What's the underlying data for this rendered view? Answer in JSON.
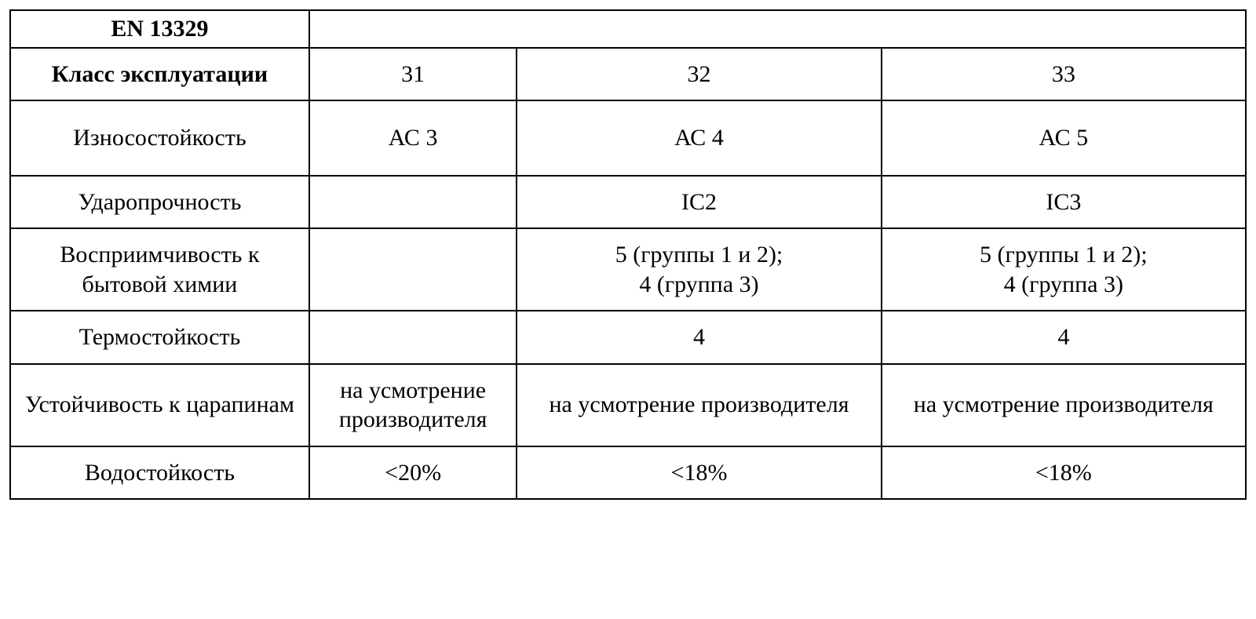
{
  "table": {
    "type": "table",
    "border_color": "#000000",
    "border_width": 2,
    "background_color": "#ffffff",
    "text_color": "#000000",
    "font_family": "Times New Roman",
    "base_fontsize": 30,
    "column_widths_pct": [
      24.2,
      16.8,
      29.5,
      29.5
    ],
    "header": {
      "standard_label": "EN 13329",
      "standard_label_bold": true
    },
    "rows": [
      {
        "label": "Класс эксплуатации",
        "label_bold": true,
        "cells": [
          "31",
          "32",
          "33"
        ]
      },
      {
        "label": "Износостойкость",
        "cells": [
          "АС 3",
          "АС 4",
          "АС 5"
        ],
        "tall": true
      },
      {
        "label": "Ударопрочность",
        "cells": [
          "",
          "IC2",
          "IC3"
        ]
      },
      {
        "label": "Восприимчивость к бытовой химии",
        "cells": [
          "",
          "5 (группы 1 и 2);\n4 (группа 3)",
          "5 (группы 1 и 2);\n4 (группа 3)"
        ]
      },
      {
        "label": "Термостойкость",
        "cells": [
          "",
          "4",
          "4"
        ]
      },
      {
        "label": "Устойчивость к царапинам",
        "cells": [
          "на усмотрение производителя",
          "на усмотрение производителя",
          "на усмотрение производителя"
        ]
      },
      {
        "label": "Водостойкость",
        "cells": [
          "<20%",
          "<18%",
          "<18%"
        ]
      }
    ]
  }
}
